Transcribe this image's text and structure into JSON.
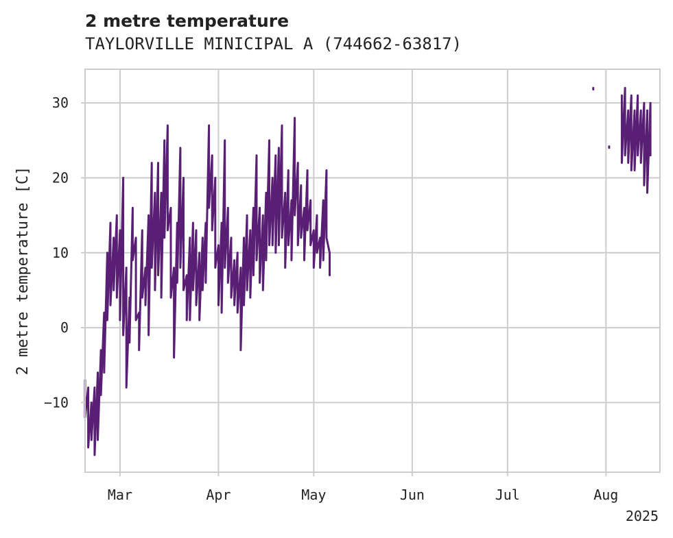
{
  "header": {
    "title": "2 metre temperature",
    "subtitle": "TAYLORVILLE MINICIPAL A (744662-63817)"
  },
  "colors": {
    "series": "#581f74",
    "grid": "#cccccc",
    "frame": "#cccccc",
    "text": "#222222"
  },
  "chart_data": {
    "type": "line",
    "title": "2 metre temperature",
    "subtitle": "TAYLORVILLE MINICIPAL A (744662-63817)",
    "xlabel": "",
    "ylabel": "2 metre temperature [C]",
    "x_type": "date",
    "xlim": [
      "2025-02-18",
      "2025-08-18"
    ],
    "ylim": [
      -19.3,
      34.5
    ],
    "x_ticks": [
      {
        "date": "2025-03-01",
        "label": "Mar"
      },
      {
        "date": "2025-04-01",
        "label": "Apr"
      },
      {
        "date": "2025-05-01",
        "label": "May"
      },
      {
        "date": "2025-06-01",
        "label": "Jun"
      },
      {
        "date": "2025-07-01",
        "label": "Jul"
      },
      {
        "date": "2025-08-01",
        "label": "Aug"
      }
    ],
    "x_year_label": "2025",
    "y_ticks": [
      -10,
      0,
      10,
      20,
      30
    ],
    "grid": true,
    "series": [
      {
        "segments": [
          [
            [
              "2025-02-18",
              -7
            ],
            [
              "2025-02-18",
              -12
            ],
            [
              "2025-02-19",
              -8
            ],
            [
              "2025-02-19",
              -16
            ],
            [
              "2025-02-20",
              -10
            ],
            [
              "2025-02-20",
              -15
            ],
            [
              "2025-02-21",
              -8
            ],
            [
              "2025-02-21",
              -17
            ],
            [
              "2025-02-22",
              -6
            ],
            [
              "2025-02-22",
              -15
            ],
            [
              "2025-02-23",
              -3
            ],
            [
              "2025-02-23",
              -9
            ],
            [
              "2025-02-24",
              2
            ],
            [
              "2025-02-24",
              -6
            ],
            [
              "2025-02-25",
              10
            ],
            [
              "2025-02-25",
              1
            ],
            [
              "2025-02-26",
              14
            ],
            [
              "2025-02-26",
              3
            ],
            [
              "2025-02-27",
              12
            ],
            [
              "2025-02-27",
              5
            ],
            [
              "2025-02-28",
              15
            ],
            [
              "2025-02-28",
              4
            ],
            [
              "2025-03-01",
              13
            ],
            [
              "2025-03-01",
              1
            ],
            [
              "2025-03-02",
              20
            ],
            [
              "2025-03-02",
              -1
            ],
            [
              "2025-03-03",
              8
            ],
            [
              "2025-03-03",
              -8
            ],
            [
              "2025-03-04",
              4
            ],
            [
              "2025-03-04",
              -2
            ],
            [
              "2025-03-05",
              16
            ],
            [
              "2025-03-05",
              9
            ],
            [
              "2025-03-06",
              12
            ],
            [
              "2025-03-06",
              1
            ],
            [
              "2025-03-07",
              2
            ],
            [
              "2025-03-07",
              -3
            ],
            [
              "2025-03-08",
              13
            ],
            [
              "2025-03-08",
              4
            ],
            [
              "2025-03-09",
              8
            ],
            [
              "2025-03-09",
              3
            ],
            [
              "2025-03-10",
              15
            ],
            [
              "2025-03-10",
              -1
            ],
            [
              "2025-03-11",
              22
            ],
            [
              "2025-03-11",
              8
            ],
            [
              "2025-03-12",
              18
            ],
            [
              "2025-03-12",
              5
            ],
            [
              "2025-03-13",
              22
            ],
            [
              "2025-03-13",
              7
            ],
            [
              "2025-03-14",
              18
            ],
            [
              "2025-03-14",
              4
            ],
            [
              "2025-03-15",
              25
            ],
            [
              "2025-03-15",
              12
            ],
            [
              "2025-03-16",
              27
            ],
            [
              "2025-03-16",
              13
            ],
            [
              "2025-03-17",
              16
            ],
            [
              "2025-03-17",
              4
            ],
            [
              "2025-03-18",
              8
            ],
            [
              "2025-03-18",
              -4
            ],
            [
              "2025-03-19",
              14
            ],
            [
              "2025-03-19",
              6
            ],
            [
              "2025-03-20",
              24
            ],
            [
              "2025-03-20",
              8
            ],
            [
              "2025-03-21",
              20
            ],
            [
              "2025-03-21",
              5
            ],
            [
              "2025-03-22",
              7
            ],
            [
              "2025-03-22",
              1
            ],
            [
              "2025-03-23",
              12
            ],
            [
              "2025-03-23",
              1
            ],
            [
              "2025-03-24",
              14
            ],
            [
              "2025-03-24",
              5
            ],
            [
              "2025-03-25",
              13
            ],
            [
              "2025-03-25",
              3
            ],
            [
              "2025-03-26",
              10
            ],
            [
              "2025-03-26",
              1
            ],
            [
              "2025-03-27",
              12
            ],
            [
              "2025-03-27",
              5
            ],
            [
              "2025-03-28",
              14
            ],
            [
              "2025-03-28",
              6
            ],
            [
              "2025-03-29",
              27
            ],
            [
              "2025-03-29",
              16
            ],
            [
              "2025-03-30",
              23
            ],
            [
              "2025-03-30",
              13
            ],
            [
              "2025-03-31",
              20
            ],
            [
              "2025-03-31",
              8
            ],
            [
              "2025-04-01",
              11
            ],
            [
              "2025-04-01",
              3
            ],
            [
              "2025-04-02",
              14
            ],
            [
              "2025-04-02",
              2
            ],
            [
              "2025-04-03",
              25
            ],
            [
              "2025-04-03",
              8
            ],
            [
              "2025-04-04",
              16
            ],
            [
              "2025-04-04",
              6
            ],
            [
              "2025-04-05",
              12
            ],
            [
              "2025-04-05",
              4
            ],
            [
              "2025-04-06",
              9
            ],
            [
              "2025-04-06",
              3
            ],
            [
              "2025-04-07",
              10
            ],
            [
              "2025-04-07",
              2
            ],
            [
              "2025-04-08",
              8
            ],
            [
              "2025-04-08",
              -3
            ],
            [
              "2025-04-09",
              12
            ],
            [
              "2025-04-09",
              3
            ],
            [
              "2025-04-10",
              15
            ],
            [
              "2025-04-10",
              5
            ],
            [
              "2025-04-11",
              13
            ],
            [
              "2025-04-11",
              4
            ],
            [
              "2025-04-12",
              16
            ],
            [
              "2025-04-12",
              7
            ],
            [
              "2025-04-13",
              23
            ],
            [
              "2025-04-13",
              9
            ],
            [
              "2025-04-14",
              16
            ],
            [
              "2025-04-14",
              6
            ],
            [
              "2025-04-15",
              15
            ],
            [
              "2025-04-15",
              5
            ],
            [
              "2025-04-16",
              18
            ],
            [
              "2025-04-16",
              9
            ],
            [
              "2025-04-17",
              25
            ],
            [
              "2025-04-17",
              11
            ],
            [
              "2025-04-18",
              20
            ],
            [
              "2025-04-18",
              11
            ],
            [
              "2025-04-19",
              23
            ],
            [
              "2025-04-19",
              10
            ],
            [
              "2025-04-20",
              24
            ],
            [
              "2025-04-20",
              11
            ],
            [
              "2025-04-21",
              27
            ],
            [
              "2025-04-21",
              12
            ],
            [
              "2025-04-22",
              18
            ],
            [
              "2025-04-22",
              8
            ],
            [
              "2025-04-23",
              21
            ],
            [
              "2025-04-23",
              11
            ],
            [
              "2025-04-24",
              17
            ],
            [
              "2025-04-24",
              9
            ],
            [
              "2025-04-25",
              28
            ],
            [
              "2025-04-25",
              15
            ],
            [
              "2025-04-26",
              22
            ],
            [
              "2025-04-26",
              11
            ],
            [
              "2025-04-27",
              19
            ],
            [
              "2025-04-27",
              12
            ],
            [
              "2025-04-28",
              16
            ],
            [
              "2025-04-28",
              9
            ],
            [
              "2025-04-29",
              21
            ],
            [
              "2025-04-29",
              13
            ],
            [
              "2025-04-30",
              17
            ],
            [
              "2025-04-30",
              11
            ],
            [
              "2025-05-01",
              13
            ],
            [
              "2025-05-01",
              8
            ],
            [
              "2025-05-02",
              15
            ],
            [
              "2025-05-02",
              10
            ],
            [
              "2025-05-03",
              12
            ],
            [
              "2025-05-03",
              8
            ],
            [
              "2025-05-04",
              17
            ],
            [
              "2025-05-04",
              9
            ],
            [
              "2025-05-05",
              21
            ],
            [
              "2025-05-05",
              12
            ],
            [
              "2025-05-06",
              10
            ],
            [
              "2025-05-06",
              7
            ]
          ],
          [
            [
              "2025-07-28",
              32
            ],
            [
              "2025-07-28",
              31.8
            ]
          ],
          [
            [
              "2025-08-02",
              24.2
            ],
            [
              "2025-08-02",
              24
            ]
          ],
          [
            [
              "2025-08-06",
              31
            ],
            [
              "2025-08-06",
              22
            ],
            [
              "2025-08-07",
              32
            ],
            [
              "2025-08-07",
              23
            ],
            [
              "2025-08-08",
              29
            ],
            [
              "2025-08-08",
              22
            ],
            [
              "2025-08-09",
              31
            ],
            [
              "2025-08-09",
              21
            ],
            [
              "2025-08-10",
              29
            ],
            [
              "2025-08-10",
              21
            ],
            [
              "2025-08-11",
              31
            ],
            [
              "2025-08-11",
              23
            ],
            [
              "2025-08-12",
              29
            ],
            [
              "2025-08-12",
              22
            ],
            [
              "2025-08-13",
              30
            ],
            [
              "2025-08-13",
              19
            ],
            [
              "2025-08-14",
              29
            ],
            [
              "2025-08-14",
              18
            ],
            [
              "2025-08-15",
              30
            ],
            [
              "2025-08-15",
              23
            ]
          ]
        ]
      }
    ]
  }
}
